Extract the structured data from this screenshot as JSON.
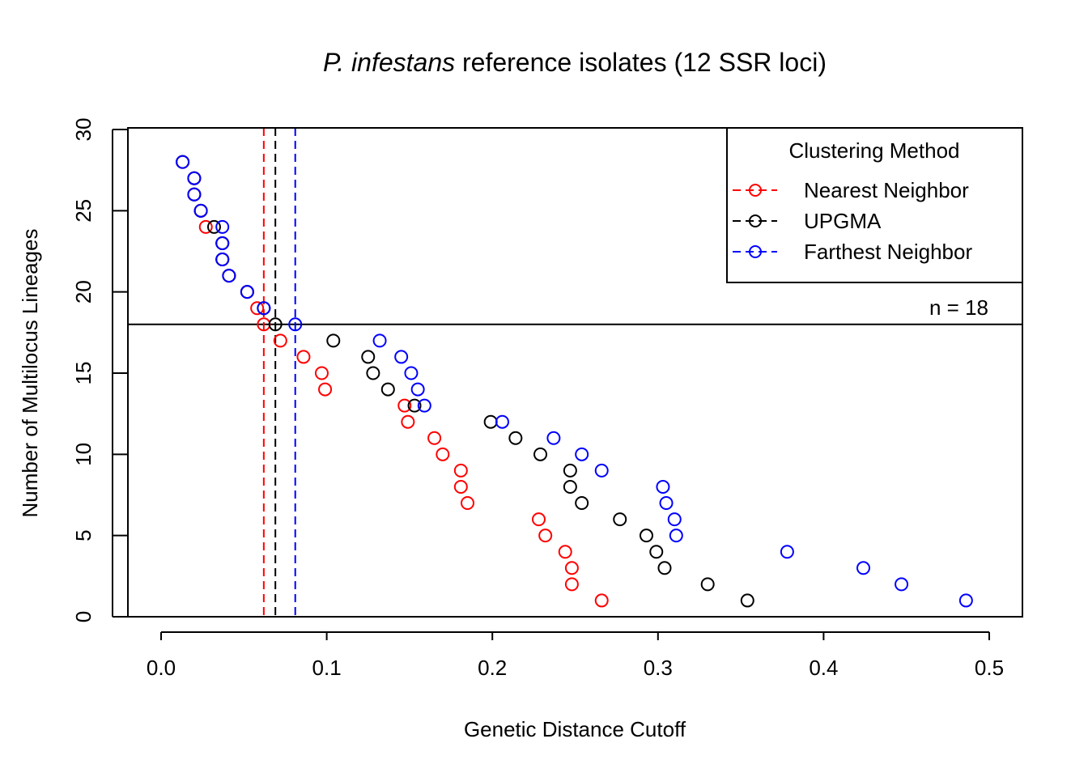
{
  "chart_data": {
    "type": "scatter",
    "title": {
      "italic": "P. infestans",
      "rest": " reference isolates (12 SSR loci)"
    },
    "xlabel": "Genetic Distance Cutoff",
    "ylabel": "Number of Multilocus Lineages",
    "xlim": [
      -0.02,
      0.52
    ],
    "ylim": [
      0,
      30
    ],
    "xticks": [
      0.0,
      0.1,
      0.2,
      0.3,
      0.4,
      0.5
    ],
    "xtick_labels": [
      "0.0",
      "0.1",
      "0.2",
      "0.3",
      "0.4",
      "0.5"
    ],
    "yticks": [
      0,
      5,
      10,
      15,
      20,
      25,
      30
    ],
    "ytick_labels": [
      "0",
      "5",
      "10",
      "15",
      "20",
      "25",
      "30"
    ],
    "grid": false,
    "legend": {
      "title": "Clustering Method",
      "placement": "top-right"
    },
    "hline": {
      "y": 18,
      "label": "n = 18",
      "color": "#000000"
    },
    "series": [
      {
        "name": "Nearest Neighbor",
        "color": "#ff0000",
        "marker": "open-circle",
        "cutoff": 0.062,
        "points": [
          [
            0.013,
            28
          ],
          [
            0.02,
            27
          ],
          [
            0.02,
            26
          ],
          [
            0.024,
            25
          ],
          [
            0.027,
            24
          ],
          [
            0.037,
            23
          ],
          [
            0.037,
            22
          ],
          [
            0.041,
            21
          ],
          [
            0.052,
            20
          ],
          [
            0.058,
            19
          ],
          [
            0.062,
            18
          ],
          [
            0.072,
            17
          ],
          [
            0.086,
            16
          ],
          [
            0.097,
            15
          ],
          [
            0.099,
            14
          ],
          [
            0.147,
            13
          ],
          [
            0.149,
            12
          ],
          [
            0.165,
            11
          ],
          [
            0.17,
            10
          ],
          [
            0.181,
            9
          ],
          [
            0.181,
            8
          ],
          [
            0.185,
            7
          ],
          [
            0.228,
            6
          ],
          [
            0.232,
            5
          ],
          [
            0.244,
            4
          ],
          [
            0.248,
            3
          ],
          [
            0.248,
            2
          ],
          [
            0.266,
            1
          ]
        ]
      },
      {
        "name": "UPGMA",
        "color": "#000000",
        "marker": "open-circle",
        "cutoff": 0.069,
        "points": [
          [
            0.013,
            28
          ],
          [
            0.02,
            27
          ],
          [
            0.02,
            26
          ],
          [
            0.024,
            25
          ],
          [
            0.032,
            24
          ],
          [
            0.037,
            23
          ],
          [
            0.037,
            22
          ],
          [
            0.041,
            21
          ],
          [
            0.052,
            20
          ],
          [
            0.062,
            19
          ],
          [
            0.069,
            18
          ],
          [
            0.104,
            17
          ],
          [
            0.125,
            16
          ],
          [
            0.128,
            15
          ],
          [
            0.137,
            14
          ],
          [
            0.153,
            13
          ],
          [
            0.199,
            12
          ],
          [
            0.214,
            11
          ],
          [
            0.229,
            10
          ],
          [
            0.247,
            9
          ],
          [
            0.247,
            8
          ],
          [
            0.254,
            7
          ],
          [
            0.277,
            6
          ],
          [
            0.293,
            5
          ],
          [
            0.299,
            4
          ],
          [
            0.304,
            3
          ],
          [
            0.33,
            2
          ],
          [
            0.354,
            1
          ]
        ]
      },
      {
        "name": "Farthest Neighbor",
        "color": "#0000ff",
        "marker": "open-circle",
        "cutoff": 0.081,
        "points": [
          [
            0.013,
            28
          ],
          [
            0.02,
            27
          ],
          [
            0.02,
            26
          ],
          [
            0.024,
            25
          ],
          [
            0.037,
            24
          ],
          [
            0.037,
            23
          ],
          [
            0.037,
            22
          ],
          [
            0.041,
            21
          ],
          [
            0.052,
            20
          ],
          [
            0.062,
            19
          ],
          [
            0.081,
            18
          ],
          [
            0.132,
            17
          ],
          [
            0.145,
            16
          ],
          [
            0.151,
            15
          ],
          [
            0.155,
            14
          ],
          [
            0.159,
            13
          ],
          [
            0.206,
            12
          ],
          [
            0.237,
            11
          ],
          [
            0.254,
            10
          ],
          [
            0.266,
            9
          ],
          [
            0.303,
            8
          ],
          [
            0.305,
            7
          ],
          [
            0.31,
            6
          ],
          [
            0.311,
            5
          ],
          [
            0.378,
            4
          ],
          [
            0.424,
            3
          ],
          [
            0.447,
            2
          ],
          [
            0.486,
            1
          ]
        ]
      }
    ]
  }
}
